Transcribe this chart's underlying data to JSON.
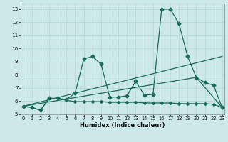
{
  "xlabel": "Humidex (Indice chaleur)",
  "background_color": "#cce8e8",
  "grid_color": "#b8d8d8",
  "line_color": "#1a6b5a",
  "x_ticks": [
    0,
    1,
    2,
    3,
    4,
    5,
    6,
    7,
    8,
    9,
    10,
    11,
    12,
    13,
    14,
    15,
    16,
    17,
    18,
    19,
    20,
    21,
    22,
    23
  ],
  "ylim": [
    5,
    13.4
  ],
  "xlim": [
    -0.3,
    23.3
  ],
  "yticks": [
    5,
    6,
    7,
    8,
    9,
    10,
    11,
    12,
    13
  ],
  "line1_x": [
    0,
    1,
    2,
    3,
    4,
    5,
    6,
    7,
    8,
    9,
    10,
    11,
    12,
    13,
    14,
    15,
    16,
    17,
    18,
    19,
    20,
    21,
    22,
    23
  ],
  "line1_y": [
    5.6,
    5.5,
    5.3,
    6.2,
    6.2,
    6.1,
    6.6,
    9.2,
    9.4,
    8.8,
    6.3,
    6.3,
    6.4,
    7.5,
    6.45,
    6.5,
    13.0,
    13.0,
    11.9,
    9.4,
    7.8,
    7.4,
    7.2,
    5.5
  ],
  "line2_x": [
    0,
    1,
    2,
    3,
    4,
    5,
    6,
    7,
    8,
    9,
    10,
    11,
    12,
    13,
    14,
    15,
    16,
    17,
    18,
    19,
    20,
    21,
    22,
    23
  ],
  "line2_y": [
    5.6,
    5.5,
    5.3,
    6.2,
    6.2,
    6.05,
    5.95,
    5.95,
    5.95,
    5.95,
    5.9,
    5.9,
    5.9,
    5.9,
    5.85,
    5.85,
    5.85,
    5.85,
    5.8,
    5.8,
    5.8,
    5.8,
    5.75,
    5.5
  ],
  "line3_x": [
    0,
    23
  ],
  "line3_y": [
    5.6,
    9.4
  ],
  "line4_x": [
    0,
    20,
    23
  ],
  "line4_y": [
    5.6,
    7.8,
    5.5
  ]
}
